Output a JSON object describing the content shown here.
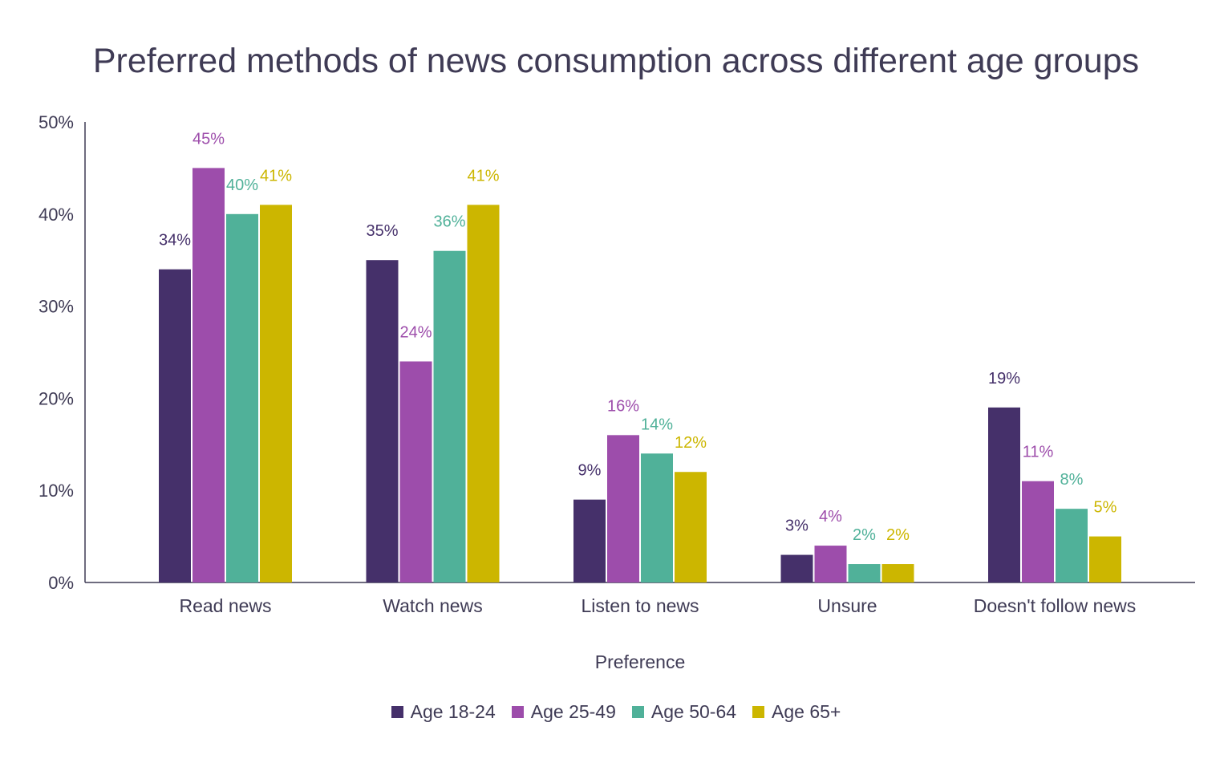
{
  "chart_data": {
    "type": "bar",
    "title": "Preferred methods of news consumption across different age groups",
    "xlabel": "Preference",
    "ylabel": "",
    "ylim": [
      0,
      50
    ],
    "yticks": [
      "0%",
      "10%",
      "20%",
      "30%",
      "40%",
      "50%"
    ],
    "grid": false,
    "legend": "bottom",
    "categories": [
      "Read news",
      "Watch news",
      "Listen to news",
      "Unsure",
      "Doesn't follow news"
    ],
    "series": [
      {
        "name": "Age 18-24",
        "color": "#45306A",
        "values": [
          34,
          35,
          9,
          3,
          19
        ]
      },
      {
        "name": "Age 25-49",
        "color": "#9D4DAB",
        "values": [
          45,
          24,
          16,
          4,
          11
        ]
      },
      {
        "name": "Age 50-64",
        "color": "#50B199",
        "values": [
          40,
          36,
          14,
          2,
          8
        ]
      },
      {
        "name": "Age 65+",
        "color": "#CCB600",
        "values": [
          41,
          41,
          12,
          2,
          5
        ]
      }
    ]
  }
}
